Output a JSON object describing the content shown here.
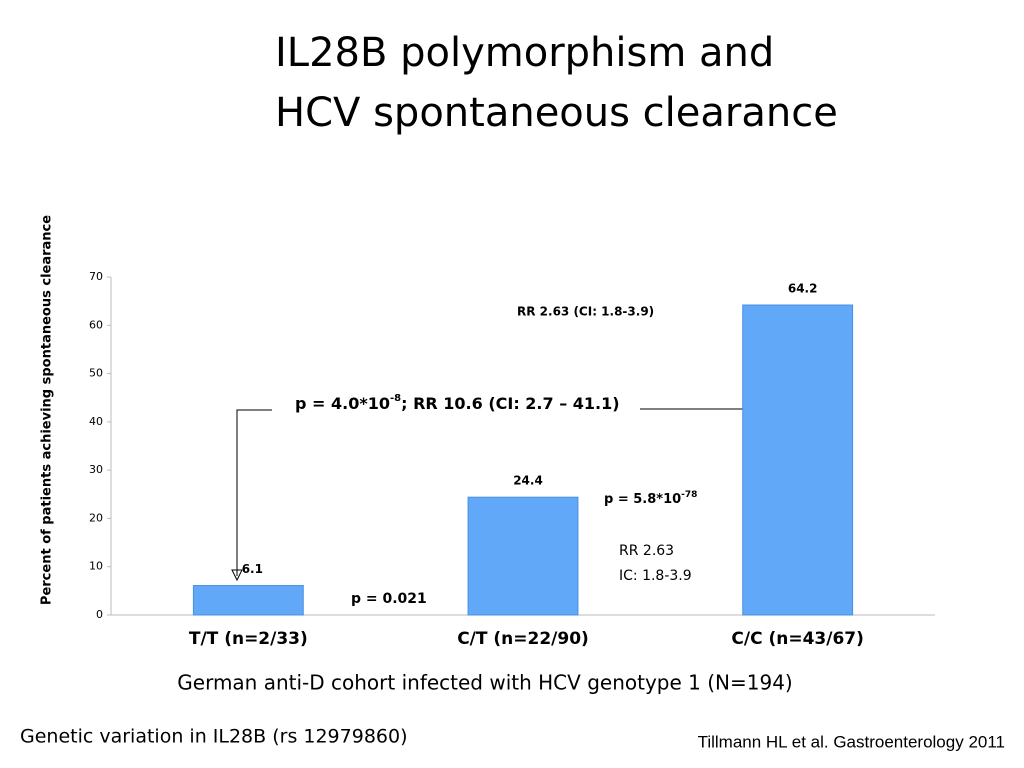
{
  "chart_data": {
    "type": "bar",
    "title": [
      "IL28B polymorphism and",
      "HCV spontaneous clearance"
    ],
    "y_label": "Percent of patients achieving spontaneous clearance",
    "categories": [
      "T/T (n=2/33)",
      "C/T (n=22/90)",
      "C/C (n=43/67)"
    ],
    "values": [
      6.1,
      24.4,
      64.2
    ],
    "color": "#62a8f8",
    "ylim": [
      0,
      70
    ],
    "yticks": [
      0,
      10,
      20,
      30,
      40,
      50,
      60,
      70
    ],
    "grid": false,
    "annotations": {
      "main_p": {
        "base": "p = 4.0*10",
        "exp": "-8",
        "rest": "; RR 10.6 (CI: 2.7 – 41.1)"
      },
      "rr_top": "RR 2.63 (CI: 1.8-3.9)",
      "ct_p": {
        "base": "p = 5.8*10",
        "exp": "-78"
      },
      "ct_rr": [
        "RR 2.63",
        "IC: 1.8-3.9"
      ],
      "tt_p": "p = 0.021"
    },
    "subtitle": "German anti-D cohort infected with HCV genotype 1 (N=194)",
    "footer_left": "Genetic variation in IL28B (rs 12979860)",
    "footer_right": "Tillmann HL et al. Gastroenterology 2011"
  }
}
